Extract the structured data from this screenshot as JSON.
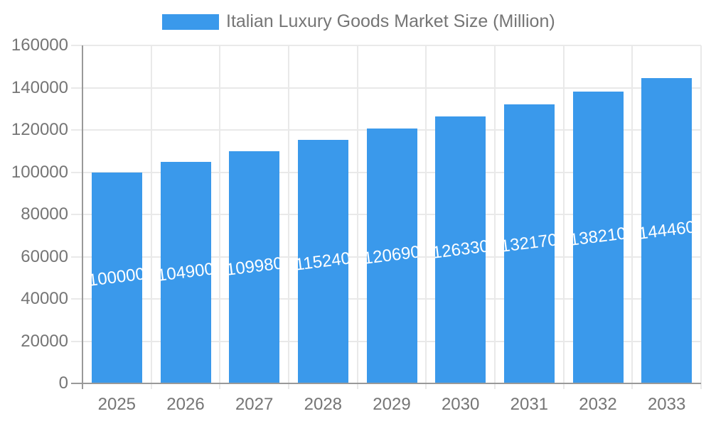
{
  "legend": {
    "label": "Italian Luxury Goods Market Size (Million)"
  },
  "colors": {
    "bar": "#3A99EB",
    "bar_label": "#FFFFFF",
    "axis_line": "#999999",
    "grid_line": "#E9E9E9",
    "axis_text": "#757575",
    "legend_text": "#757575",
    "background": "#FFFFFF"
  },
  "chart_data": {
    "type": "bar",
    "title": "Italian Luxury Goods Market Size (Million)",
    "categories": [
      "2025",
      "2026",
      "2027",
      "2028",
      "2029",
      "2030",
      "2031",
      "2032",
      "2033"
    ],
    "values": [
      100000,
      104900,
      109980,
      115240,
      120690,
      126330,
      132170,
      138210,
      144460
    ],
    "bar_labels": [
      "100000",
      "104900",
      "109980",
      "115240",
      "120690",
      "126330",
      "132170",
      "138210",
      "144460"
    ],
    "xlabel": "",
    "ylabel": "",
    "ylim": [
      0,
      160000
    ],
    "yticks": [
      0,
      20000,
      40000,
      60000,
      80000,
      100000,
      120000,
      140000,
      160000
    ],
    "ytick_labels": [
      "0",
      "20000",
      "40000",
      "60000",
      "80000",
      "100000",
      "120000",
      "140000",
      "160000"
    ],
    "grid": true,
    "legend_position": "top",
    "bar_labels_visible": true,
    "bar_label_rotation_deg": -7
  }
}
